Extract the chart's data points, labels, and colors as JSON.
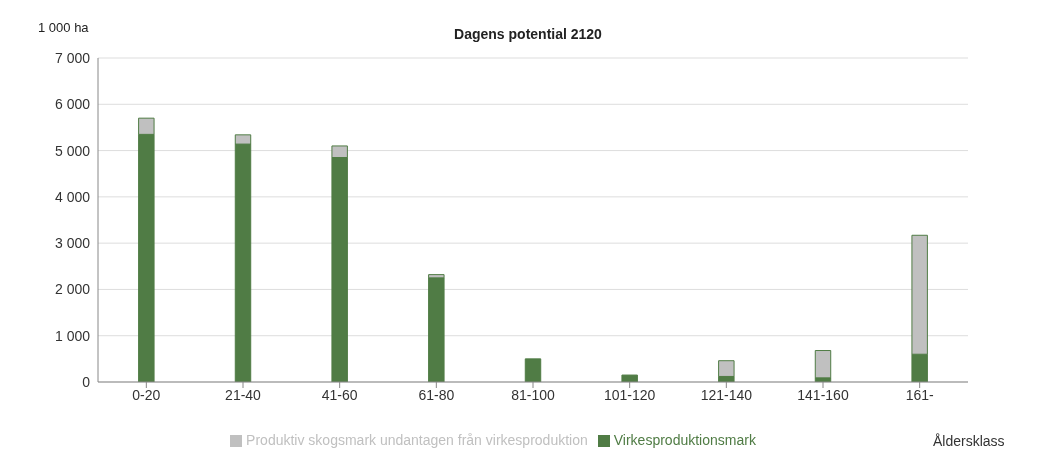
{
  "chart_data": {
    "type": "bar",
    "title": "Dagens potential 2120",
    "ylabel": "1 000 ha",
    "xlabel": "Åldersklass",
    "categories": [
      "0-20",
      "21-40",
      "41-60",
      "61-80",
      "81-100",
      "101-120",
      "121-140",
      "141-160",
      "161-"
    ],
    "series": [
      {
        "name": "Virkesproduktionsmark",
        "color": "#507c45",
        "values": [
          5350,
          5140,
          4850,
          2250,
          500,
          150,
          120,
          90,
          600
        ]
      },
      {
        "name": "Produktiv skogsmark undantagen från virkesproduktion",
        "color": "#c0c0c0",
        "values": [
          350,
          200,
          250,
          70,
          0,
          0,
          340,
          590,
          2570
        ]
      }
    ],
    "stacked": true,
    "ylim": [
      0,
      7000
    ],
    "yticks": [
      {
        "value": 0,
        "label": "0"
      },
      {
        "value": 1000,
        "label": "1 000"
      },
      {
        "value": 2000,
        "label": "2 000"
      },
      {
        "value": 3000,
        "label": "3 000"
      },
      {
        "value": 4000,
        "label": "4 000"
      },
      {
        "value": 5000,
        "label": "5 000"
      },
      {
        "value": 6000,
        "label": "6 000"
      },
      {
        "value": 7000,
        "label": "7 000"
      }
    ],
    "grid": "y",
    "legend": "bottom"
  }
}
